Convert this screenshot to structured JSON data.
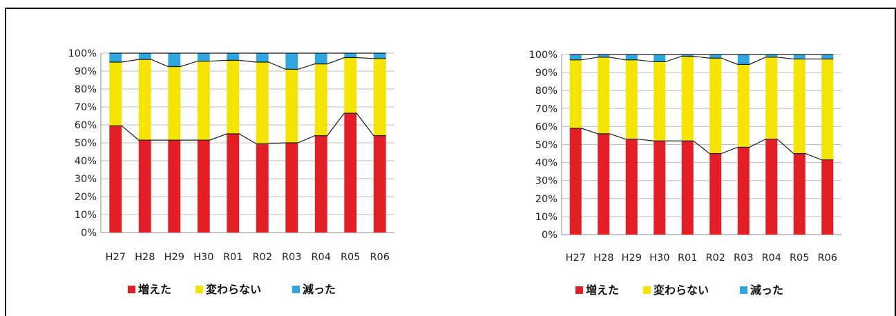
{
  "colors": {
    "increased": "#e31e24",
    "unchanged": "#f5e400",
    "decreased": "#2ea7e0",
    "line": "#1a1a1a",
    "grid": "#bdbdbd",
    "axis": "#888888"
  },
  "chart_data": [
    {
      "type": "bar",
      "stacked": true,
      "percent": true,
      "categories": [
        "H27",
        "H28",
        "H29",
        "H30",
        "R01",
        "R02",
        "R03",
        "R04",
        "R05",
        "R06"
      ],
      "y_ticks": [
        "0%",
        "10%",
        "20%",
        "30%",
        "40%",
        "50%",
        "60%",
        "70%",
        "80%",
        "90%",
        "100%"
      ],
      "ylim": [
        0,
        100
      ],
      "grid": true,
      "legend_position": "bottom",
      "series": [
        {
          "name": "増えた",
          "color_key": "increased",
          "values": [
            59.5,
            51.5,
            51.5,
            51.5,
            55,
            49.5,
            50,
            54,
            66.5,
            54
          ]
        },
        {
          "name": "変わらない",
          "color_key": "unchanged",
          "values": [
            35.5,
            45,
            41,
            44,
            41,
            45.5,
            41,
            40,
            31,
            43
          ]
        },
        {
          "name": "減った",
          "color_key": "decreased",
          "values": [
            5,
            3.5,
            7.5,
            4.5,
            4,
            5,
            9,
            6,
            2.5,
            3
          ]
        }
      ]
    },
    {
      "type": "bar",
      "stacked": true,
      "percent": true,
      "categories": [
        "H27",
        "H28",
        "H29",
        "H30",
        "R01",
        "R02",
        "R03",
        "R04",
        "R05",
        "R06"
      ],
      "y_ticks": [
        "0%",
        "10%",
        "20%",
        "30%",
        "40%",
        "50%",
        "60%",
        "70%",
        "80%",
        "90%",
        "100%"
      ],
      "ylim": [
        0,
        100
      ],
      "grid": true,
      "legend_position": "bottom",
      "series": [
        {
          "name": "増えた",
          "color_key": "increased",
          "values": [
            59,
            56,
            53,
            52,
            52,
            45,
            48.5,
            53,
            45,
            41.5
          ]
        },
        {
          "name": "変わらない",
          "color_key": "unchanged",
          "values": [
            38,
            42.5,
            44,
            44,
            47,
            53,
            46,
            45.5,
            52.5,
            56
          ]
        },
        {
          "name": "減った",
          "color_key": "decreased",
          "values": [
            3,
            1.5,
            3,
            4,
            1,
            2,
            5.5,
            1.5,
            2.5,
            2.5
          ]
        }
      ]
    }
  ]
}
